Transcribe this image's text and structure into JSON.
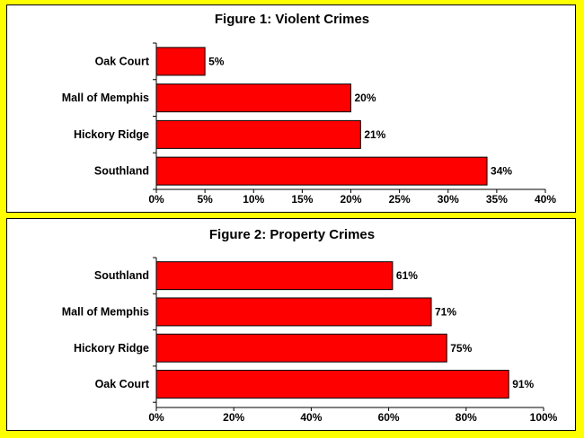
{
  "chart_data": [
    {
      "type": "bar",
      "orientation": "horizontal",
      "title": "Figure 1: Violent Crimes",
      "categories": [
        "Oak Court",
        "Mall of Memphis",
        "Hickory Ridge",
        "Southland"
      ],
      "values": [
        5,
        20,
        21,
        34
      ],
      "data_labels": [
        "5%",
        "20%",
        "21%",
        "34%"
      ],
      "xlim": [
        0,
        40
      ],
      "x_ticks": [
        "0%",
        "5%",
        "10%",
        "15%",
        "20%",
        "25%",
        "30%",
        "35%",
        "40%"
      ],
      "bar_color": "#ff0000",
      "grid": false,
      "legend": "none"
    },
    {
      "type": "bar",
      "orientation": "horizontal",
      "title": "Figure 2: Property Crimes",
      "categories": [
        "Southland",
        "Mall of Memphis",
        "Hickory Ridge",
        "Oak Court"
      ],
      "values": [
        61,
        71,
        75,
        91
      ],
      "data_labels": [
        "61%",
        "71%",
        "75%",
        "91%"
      ],
      "xlim": [
        0,
        100
      ],
      "x_ticks": [
        "0%",
        "20%",
        "40%",
        "60%",
        "80%",
        "100%"
      ],
      "bar_color": "#ff0000",
      "grid": false,
      "legend": "none"
    }
  ],
  "page": {
    "background_color": "#ffff00",
    "panel_color": "#ffffff"
  }
}
